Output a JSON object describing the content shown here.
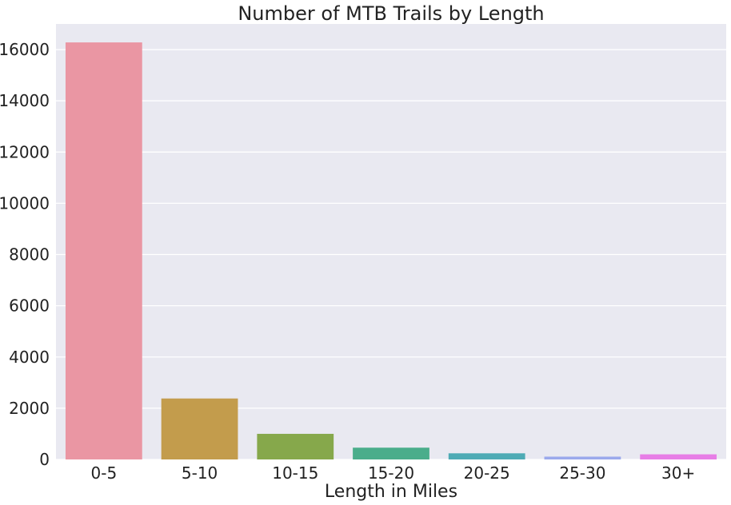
{
  "chart_data": {
    "type": "bar",
    "title": "Number of MTB Trails by Length",
    "xlabel": "Length in Miles",
    "ylabel": "",
    "categories": [
      "0-5",
      "5-10",
      "10-15",
      "15-20",
      "20-25",
      "25-30",
      "30+"
    ],
    "values": [
      16280,
      2380,
      1000,
      460,
      240,
      110,
      200
    ],
    "colors": [
      "#ea96a3",
      "#c39c4c",
      "#86a84b",
      "#4aad8b",
      "#4eabb5",
      "#9ba9ec",
      "#e77ee6"
    ],
    "ylim": [
      0,
      17000
    ],
    "yticks": [
      0,
      2000,
      4000,
      6000,
      8000,
      10000,
      12000,
      14000,
      16000
    ],
    "ytick_labels": [
      "0",
      "2000",
      "4000",
      "6000",
      "8000",
      "10000",
      "12000",
      "14000",
      "16000"
    ],
    "grid": true,
    "background": "#e9e9f1",
    "grid_color": "#ffffff"
  }
}
